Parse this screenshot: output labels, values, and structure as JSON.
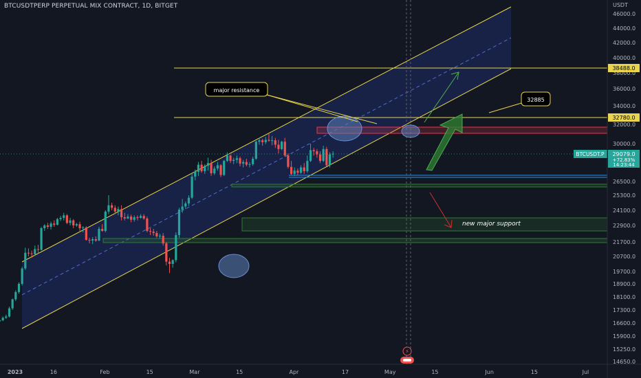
{
  "header": {
    "title": "BTCUSDTPERP PERPETUAL MIX CONTRACT, 1D, BITGET"
  },
  "chart_data": {
    "type": "candlestick",
    "symbol": "BTCUSDTPERP PERPETUAL MIX CONTRACT",
    "interval": "1D",
    "exchange": "BITGET",
    "currency_label": "USDT",
    "y_ticks": [
      "46000.0",
      "44000.0",
      "42000.0",
      "40000.0",
      "38000.0",
      "36000.0",
      "34000.0",
      "32000.0",
      "30000.0",
      "26500.0",
      "25300.0",
      "24100.0",
      "22900.0",
      "21700.0",
      "20700.0",
      "19700.0",
      "18900.0",
      "18100.0",
      "17300.0",
      "16600.0",
      "15900.0",
      "15250.0",
      "14650.0"
    ],
    "x_ticks": [
      "2023",
      "16",
      "Feb",
      "15",
      "Mar",
      "15",
      "Apr",
      "17",
      "May",
      "15",
      "Jun",
      "15",
      "Jul"
    ],
    "price_labels": {
      "level_1": "38488.0",
      "level_2": "32780.0",
      "symbol_tag": "BTCUSDT.P",
      "last_price": "29079.0",
      "change": "+72.83%",
      "countdown": "14:23:44"
    },
    "annotations": {
      "resistance_label": "major resistance",
      "target_label": "32885",
      "support_label": "new major support"
    },
    "colors": {
      "background": "#131722",
      "up": "#26a69a",
      "down": "#ef5350",
      "channel": "#e8d44d",
      "zone_red": "#f23645",
      "zone_green": "#2e7d32",
      "support_blue": "#2196f3",
      "highlight_ellipse": "#5b7fb8",
      "axis_text": "#b2b5be"
    },
    "candles": [
      {
        "o": 16540,
        "h": 16760,
        "l": 16500,
        "c": 16610
      },
      {
        "o": 16610,
        "h": 16720,
        "l": 16540,
        "c": 16670
      },
      {
        "o": 16670,
        "h": 16780,
        "l": 16600,
        "c": 16690
      },
      {
        "o": 16690,
        "h": 16820,
        "l": 16650,
        "c": 16750
      },
      {
        "o": 16750,
        "h": 16950,
        "l": 16700,
        "c": 16880
      },
      {
        "o": 16880,
        "h": 17050,
        "l": 16820,
        "c": 16950
      },
      {
        "o": 16950,
        "h": 17500,
        "l": 16900,
        "c": 17400
      },
      {
        "o": 17400,
        "h": 18000,
        "l": 17300,
        "c": 17950
      },
      {
        "o": 17950,
        "h": 18500,
        "l": 17850,
        "c": 18400
      },
      {
        "o": 18400,
        "h": 19000,
        "l": 18300,
        "c": 18900
      },
      {
        "o": 18900,
        "h": 20000,
        "l": 18800,
        "c": 19900
      },
      {
        "o": 19900,
        "h": 21300,
        "l": 19800,
        "c": 20950
      },
      {
        "o": 20950,
        "h": 21250,
        "l": 20700,
        "c": 20900
      },
      {
        "o": 20900,
        "h": 21100,
        "l": 20600,
        "c": 20850
      },
      {
        "o": 20850,
        "h": 21450,
        "l": 20750,
        "c": 21200
      },
      {
        "o": 21200,
        "h": 21500,
        "l": 20900,
        "c": 21150
      },
      {
        "o": 21150,
        "h": 22800,
        "l": 21100,
        "c": 22700
      },
      {
        "o": 22700,
        "h": 23000,
        "l": 22500,
        "c": 22900
      },
      {
        "o": 22900,
        "h": 23100,
        "l": 22650,
        "c": 22800
      },
      {
        "o": 22800,
        "h": 23200,
        "l": 22600,
        "c": 23050
      },
      {
        "o": 23050,
        "h": 23300,
        "l": 22800,
        "c": 22950
      },
      {
        "o": 22950,
        "h": 23500,
        "l": 22900,
        "c": 23400
      },
      {
        "o": 23400,
        "h": 23650,
        "l": 23250,
        "c": 23500
      },
      {
        "o": 23500,
        "h": 23900,
        "l": 23300,
        "c": 23700
      },
      {
        "o": 23700,
        "h": 23800,
        "l": 23000,
        "c": 23100
      },
      {
        "o": 23100,
        "h": 23500,
        "l": 22900,
        "c": 23300
      },
      {
        "o": 23300,
        "h": 23400,
        "l": 22700,
        "c": 22900
      },
      {
        "o": 22900,
        "h": 23100,
        "l": 22800,
        "c": 23000
      },
      {
        "o": 23000,
        "h": 23200,
        "l": 22500,
        "c": 22700
      },
      {
        "o": 22700,
        "h": 22850,
        "l": 22400,
        "c": 22750
      },
      {
        "o": 22750,
        "h": 22850,
        "l": 21800,
        "c": 21850
      },
      {
        "o": 21850,
        "h": 22000,
        "l": 21600,
        "c": 21800
      },
      {
        "o": 21800,
        "h": 22050,
        "l": 21550,
        "c": 21900
      },
      {
        "o": 21900,
        "h": 22100,
        "l": 21700,
        "c": 21800
      },
      {
        "o": 21800,
        "h": 22800,
        "l": 21750,
        "c": 22650
      },
      {
        "o": 22650,
        "h": 23000,
        "l": 22450,
        "c": 22500
      },
      {
        "o": 22500,
        "h": 24100,
        "l": 22400,
        "c": 24000
      },
      {
        "o": 24000,
        "h": 25300,
        "l": 23800,
        "c": 24500
      },
      {
        "o": 24500,
        "h": 24700,
        "l": 24100,
        "c": 24300
      },
      {
        "o": 24300,
        "h": 24500,
        "l": 23800,
        "c": 24000
      },
      {
        "o": 24000,
        "h": 24400,
        "l": 23700,
        "c": 24200
      },
      {
        "o": 24200,
        "h": 24500,
        "l": 23300,
        "c": 23550
      },
      {
        "o": 23550,
        "h": 23900,
        "l": 23300,
        "c": 23450
      },
      {
        "o": 23450,
        "h": 23800,
        "l": 23400,
        "c": 23600
      },
      {
        "o": 23600,
        "h": 23750,
        "l": 23150,
        "c": 23350
      },
      {
        "o": 23350,
        "h": 23700,
        "l": 23200,
        "c": 23550
      },
      {
        "o": 23550,
        "h": 23700,
        "l": 23300,
        "c": 23500
      },
      {
        "o": 23500,
        "h": 23800,
        "l": 23450,
        "c": 23650
      },
      {
        "o": 23650,
        "h": 23800,
        "l": 23350,
        "c": 23450
      },
      {
        "o": 23450,
        "h": 23600,
        "l": 22400,
        "c": 22500
      },
      {
        "o": 22500,
        "h": 22700,
        "l": 22200,
        "c": 22450
      },
      {
        "o": 22450,
        "h": 22650,
        "l": 22150,
        "c": 22350
      },
      {
        "o": 22350,
        "h": 22500,
        "l": 22000,
        "c": 22100
      },
      {
        "o": 22100,
        "h": 22300,
        "l": 21950,
        "c": 22150
      },
      {
        "o": 22150,
        "h": 22350,
        "l": 21450,
        "c": 21600
      },
      {
        "o": 21600,
        "h": 21700,
        "l": 20100,
        "c": 20350
      },
      {
        "o": 20350,
        "h": 20600,
        "l": 19600,
        "c": 20200
      },
      {
        "o": 20200,
        "h": 20500,
        "l": 19950,
        "c": 20450
      },
      {
        "o": 20450,
        "h": 22400,
        "l": 20300,
        "c": 22200
      },
      {
        "o": 22200,
        "h": 24300,
        "l": 22000,
        "c": 24150
      },
      {
        "o": 24150,
        "h": 25000,
        "l": 23900,
        "c": 24400
      },
      {
        "o": 24400,
        "h": 24800,
        "l": 24200,
        "c": 24650
      },
      {
        "o": 24650,
        "h": 25300,
        "l": 24450,
        "c": 25100
      },
      {
        "o": 25100,
        "h": 27200,
        "l": 25000,
        "c": 26950
      },
      {
        "o": 26950,
        "h": 27600,
        "l": 26600,
        "c": 27400
      },
      {
        "o": 27400,
        "h": 28300,
        "l": 27000,
        "c": 28050
      },
      {
        "o": 28050,
        "h": 28400,
        "l": 27300,
        "c": 27450
      },
      {
        "o": 27450,
        "h": 28100,
        "l": 27200,
        "c": 27950
      },
      {
        "o": 27950,
        "h": 28700,
        "l": 27500,
        "c": 28200
      },
      {
        "o": 28200,
        "h": 28500,
        "l": 27000,
        "c": 27250
      },
      {
        "o": 27250,
        "h": 27900,
        "l": 27100,
        "c": 27700
      },
      {
        "o": 27700,
        "h": 28300,
        "l": 27500,
        "c": 28000
      },
      {
        "o": 28000,
        "h": 28100,
        "l": 26900,
        "c": 27100
      },
      {
        "o": 27100,
        "h": 28500,
        "l": 27000,
        "c": 28400
      },
      {
        "o": 28400,
        "h": 29200,
        "l": 28300,
        "c": 28900
      },
      {
        "o": 28900,
        "h": 29000,
        "l": 28200,
        "c": 28400
      },
      {
        "o": 28400,
        "h": 28700,
        "l": 28100,
        "c": 28500
      },
      {
        "o": 28500,
        "h": 28900,
        "l": 28200,
        "c": 28650
      },
      {
        "o": 28650,
        "h": 28800,
        "l": 27900,
        "c": 28150
      },
      {
        "o": 28150,
        "h": 28500,
        "l": 27800,
        "c": 28300
      },
      {
        "o": 28300,
        "h": 28600,
        "l": 27900,
        "c": 28050
      },
      {
        "o": 28050,
        "h": 28300,
        "l": 27800,
        "c": 28100
      },
      {
        "o": 28100,
        "h": 28800,
        "l": 27950,
        "c": 28600
      },
      {
        "o": 28600,
        "h": 30300,
        "l": 28500,
        "c": 30200
      },
      {
        "o": 30200,
        "h": 30600,
        "l": 29900,
        "c": 30350
      },
      {
        "o": 30350,
        "h": 30500,
        "l": 29800,
        "c": 30150
      },
      {
        "o": 30150,
        "h": 30700,
        "l": 29950,
        "c": 30400
      },
      {
        "o": 30400,
        "h": 31000,
        "l": 30200,
        "c": 30300
      },
      {
        "o": 30300,
        "h": 30800,
        "l": 29850,
        "c": 30350
      },
      {
        "o": 30350,
        "h": 30600,
        "l": 29600,
        "c": 29900
      },
      {
        "o": 29900,
        "h": 30400,
        "l": 29100,
        "c": 29500
      },
      {
        "o": 29500,
        "h": 30300,
        "l": 29400,
        "c": 30200
      },
      {
        "o": 30200,
        "h": 30600,
        "l": 28800,
        "c": 28900
      },
      {
        "o": 28900,
        "h": 29100,
        "l": 27700,
        "c": 27850
      },
      {
        "o": 27850,
        "h": 28400,
        "l": 27100,
        "c": 27200
      },
      {
        "o": 27200,
        "h": 27800,
        "l": 27000,
        "c": 27500
      },
      {
        "o": 27500,
        "h": 27700,
        "l": 27100,
        "c": 27300
      },
      {
        "o": 27300,
        "h": 28000,
        "l": 27200,
        "c": 27800
      },
      {
        "o": 27800,
        "h": 28200,
        "l": 27200,
        "c": 27450
      },
      {
        "o": 27450,
        "h": 28900,
        "l": 27300,
        "c": 28400
      },
      {
        "o": 28400,
        "h": 30000,
        "l": 28300,
        "c": 29400
      },
      {
        "o": 29400,
        "h": 29600,
        "l": 28900,
        "c": 29300
      },
      {
        "o": 29300,
        "h": 29500,
        "l": 28700,
        "c": 29000
      },
      {
        "o": 29000,
        "h": 29300,
        "l": 28200,
        "c": 28400
      },
      {
        "o": 28400,
        "h": 29800,
        "l": 28300,
        "c": 29500
      },
      {
        "o": 29500,
        "h": 29700,
        "l": 27900,
        "c": 28000
      },
      {
        "o": 28000,
        "h": 29200,
        "l": 27800,
        "c": 29000
      },
      {
        "o": 29000,
        "h": 29300,
        "l": 28700,
        "c": 29079
      }
    ]
  }
}
